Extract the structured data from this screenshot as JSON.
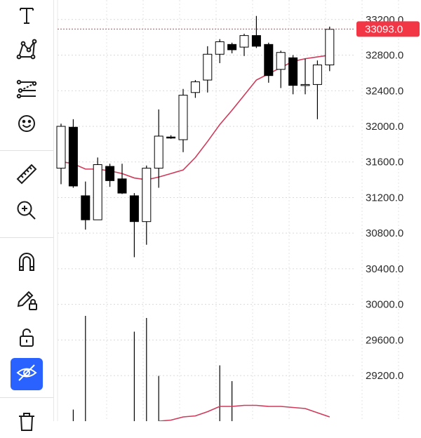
{
  "toolbar": {
    "items": [
      {
        "name": "text-tool",
        "icon": "text-icon"
      },
      {
        "name": "pattern-tool",
        "icon": "pattern-icon"
      },
      {
        "name": "forecast-tool",
        "icon": "forecast-icon"
      },
      {
        "name": "emoji-tool",
        "icon": "smiley-icon"
      },
      {
        "name": "measure-tool",
        "icon": "ruler-icon"
      },
      {
        "name": "zoom-in-tool",
        "icon": "zoom-in-icon"
      },
      {
        "name": "magnet-tool",
        "icon": "magnet-icon"
      },
      {
        "name": "lock-drawings-tool",
        "icon": "pencil-lock-icon"
      },
      {
        "name": "lock-tool",
        "icon": "lock-open-icon"
      },
      {
        "name": "hide-drawings-tool",
        "icon": "eye-crossed-icon",
        "active": true
      },
      {
        "name": "delete-tool",
        "icon": "trash-icon"
      }
    ],
    "active_color": "#2962ff"
  },
  "chart_data": {
    "type": "candlestick",
    "y_ticks": [
      "33200.0",
      "32800.0",
      "32400.0",
      "32000.0",
      "31600.0",
      "31200.0",
      "30800.0",
      "30400.0",
      "30000.0",
      "29600.0",
      "29200.0"
    ],
    "last_price_label": "33093.0",
    "last_price": 33093,
    "ylim": [
      28980,
      33230
    ],
    "grid": true,
    "colors": {
      "up": "#ffffff",
      "down": "#000000",
      "outline": "#000000",
      "ma": "#d03a5a",
      "price_tag": "#f23645",
      "volume": "#000000",
      "volume_ma": "#d03a5a"
    },
    "candles": [
      {
        "o": 31530,
        "h": 32030,
        "l": 31350,
        "c": 32000
      },
      {
        "o": 31990,
        "h": 32080,
        "l": 31310,
        "c": 31330
      },
      {
        "o": 31220,
        "h": 31380,
        "l": 30840,
        "c": 30950
      },
      {
        "o": 30950,
        "h": 31650,
        "l": 30950,
        "c": 31570
      },
      {
        "o": 31550,
        "h": 31580,
        "l": 31320,
        "c": 31390
      },
      {
        "o": 31410,
        "h": 31580,
        "l": 31240,
        "c": 31250
      },
      {
        "o": 31220,
        "h": 31250,
        "l": 30530,
        "c": 30930
      },
      {
        "o": 30930,
        "h": 31560,
        "l": 30670,
        "c": 31530
      },
      {
        "o": 31530,
        "h": 32190,
        "l": 31310,
        "c": 31890
      },
      {
        "o": 31880,
        "h": 31900,
        "l": 31860,
        "c": 31870
      },
      {
        "o": 31850,
        "h": 32420,
        "l": 31710,
        "c": 32350
      },
      {
        "o": 32380,
        "h": 32520,
        "l": 32320,
        "c": 32500
      },
      {
        "o": 32520,
        "h": 32900,
        "l": 32380,
        "c": 32810
      },
      {
        "o": 32810,
        "h": 32980,
        "l": 32710,
        "c": 32950
      },
      {
        "o": 32920,
        "h": 32940,
        "l": 32820,
        "c": 32860
      },
      {
        "o": 32890,
        "h": 33040,
        "l": 32790,
        "c": 33020
      },
      {
        "o": 33020,
        "h": 33240,
        "l": 32880,
        "c": 32900
      },
      {
        "o": 32920,
        "h": 32940,
        "l": 32490,
        "c": 32570
      },
      {
        "o": 32640,
        "h": 32850,
        "l": 32430,
        "c": 32830
      },
      {
        "o": 32770,
        "h": 32800,
        "l": 32360,
        "c": 32460
      },
      {
        "o": 32460,
        "h": 32760,
        "l": 32360,
        "c": 32470
      },
      {
        "o": 32470,
        "h": 32740,
        "l": 32080,
        "c": 32690
      },
      {
        "o": 32690,
        "h": 33120,
        "l": 32620,
        "c": 33090
      }
    ],
    "ma": [
      31600,
      31580,
      31520,
      31520,
      31500,
      31470,
      31420,
      31400,
      31430,
      31470,
      31510,
      31650,
      31830,
      32020,
      32180,
      32350,
      32520,
      32590,
      32660,
      32730,
      32760,
      32780,
      32800
    ],
    "volume": [
      0.0,
      0.11,
      1.0,
      0.0,
      0.0,
      0.0,
      0.85,
      0.98,
      0.43,
      0.0,
      0.0,
      0.0,
      0.0,
      0.53,
      0.38,
      0.0,
      0.0,
      0.0,
      0.0,
      0.0,
      0.0,
      0.0,
      0.0
    ],
    "volume_ma": [
      null,
      null,
      null,
      null,
      null,
      null,
      null,
      null,
      0.0,
      0.01,
      0.04,
      0.05,
      0.09,
      0.14,
      0.14,
      0.15,
      0.15,
      0.14,
      0.14,
      0.13,
      0.12,
      0.08,
      0.04
    ]
  }
}
